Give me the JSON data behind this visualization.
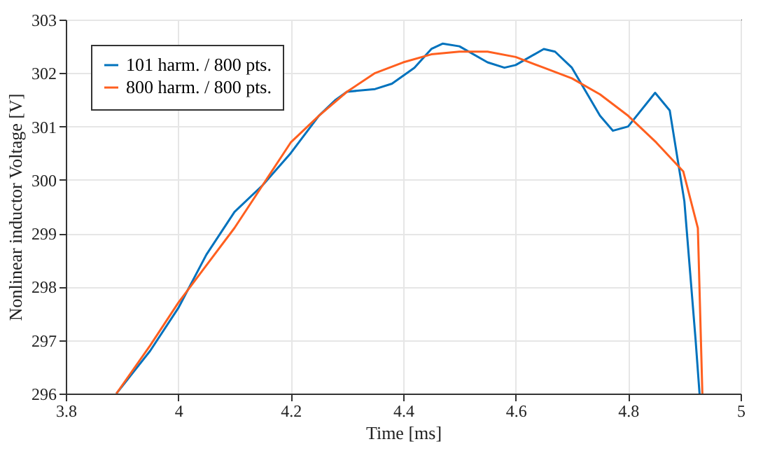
{
  "chart_data": {
    "type": "line",
    "xlabel": "Time [ms]",
    "ylabel": "Nonlinear inductor Voltage [V]",
    "xlim": [
      3.8,
      5
    ],
    "xticks": [
      3.8,
      4,
      4.2,
      4.4,
      4.6,
      4.8,
      5
    ],
    "ylim": [
      296,
      303
    ],
    "yticks": [
      296,
      297,
      298,
      299,
      300,
      301,
      302,
      303
    ],
    "grid": true,
    "legend": "top left",
    "line_style": "solid",
    "marker": "none",
    "series": [
      {
        "name": "101 harm. / 800 pts.",
        "color": "#0072bd",
        "x": [
          3.89,
          3.95,
          4.0,
          4.05,
          4.1,
          4.15,
          4.2,
          4.25,
          4.28,
          4.3,
          4.35,
          4.38,
          4.42,
          4.45,
          4.47,
          4.5,
          4.55,
          4.58,
          4.6,
          4.65,
          4.67,
          4.7,
          4.75,
          4.773,
          4.8,
          4.848,
          4.874,
          4.9,
          4.92,
          4.927
        ],
        "values": [
          296,
          296.8,
          297.6,
          298.6,
          299.4,
          299.9,
          300.5,
          301.2,
          301.5,
          301.65,
          301.7,
          301.8,
          302.1,
          302.45,
          302.55,
          302.5,
          302.2,
          302.1,
          302.15,
          302.45,
          302.4,
          302.1,
          301.2,
          300.92,
          301.0,
          301.63,
          301.3,
          299.6,
          297.0,
          296
        ]
      },
      {
        "name": "800 harm. / 800 pts.",
        "color": "#ff5f1f",
        "x": [
          3.89,
          3.95,
          4.0,
          4.05,
          4.1,
          4.15,
          4.2,
          4.25,
          4.3,
          4.35,
          4.4,
          4.45,
          4.5,
          4.55,
          4.6,
          4.65,
          4.7,
          4.75,
          4.8,
          4.85,
          4.898,
          4.924,
          4.932
        ],
        "values": [
          296,
          296.9,
          297.7,
          298.4,
          299.1,
          299.9,
          300.7,
          301.2,
          301.65,
          302.0,
          302.2,
          302.35,
          302.4,
          302.4,
          302.3,
          302.1,
          301.9,
          301.6,
          301.2,
          300.7,
          300.16,
          299.1,
          296
        ]
      }
    ]
  }
}
